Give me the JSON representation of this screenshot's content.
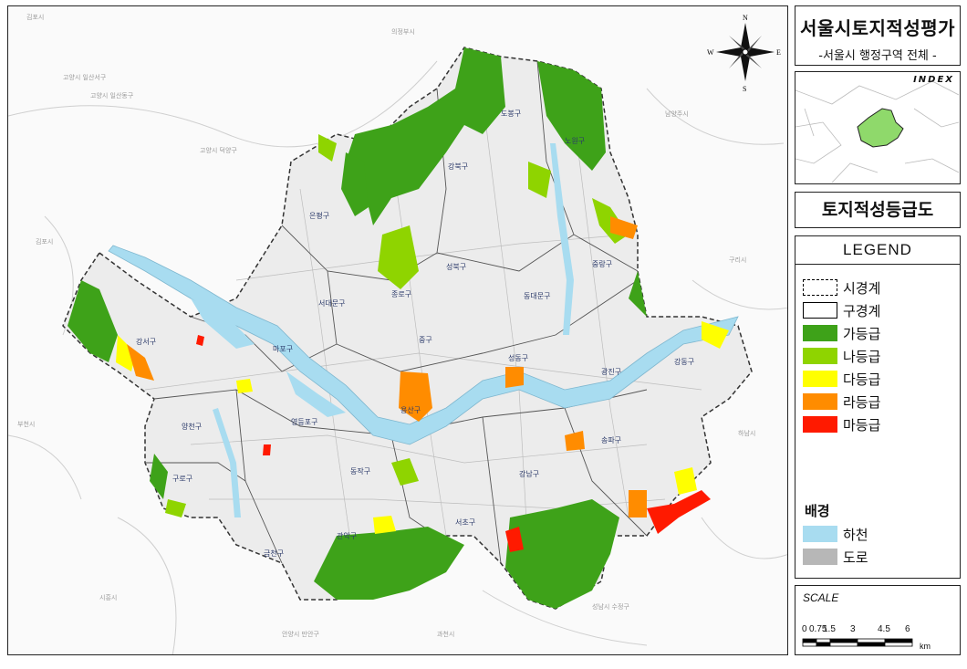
{
  "title": {
    "main": "서울시토지적성평가",
    "sub": "-서울시 행정구역 전체 -"
  },
  "index_map": {
    "label": "INDEX",
    "highlight_color": "#8fd96b"
  },
  "map_title": "토지적성등급도",
  "compass": {
    "n": "N",
    "s": "S",
    "e": "E",
    "w": "W"
  },
  "legend": {
    "header": "LEGEND",
    "items": [
      {
        "label": "시경계",
        "style": "dashed-outline",
        "color": "#000000"
      },
      {
        "label": "구경계",
        "style": "outline",
        "color": "#000000"
      },
      {
        "label": "가등급",
        "style": "fill",
        "color": "#3ea219"
      },
      {
        "label": "나등급",
        "style": "fill",
        "color": "#8fd400"
      },
      {
        "label": "다등급",
        "style": "fill",
        "color": "#ffff00"
      },
      {
        "label": "라등급",
        "style": "fill",
        "color": "#ff8c00"
      },
      {
        "label": "마등급",
        "style": "fill",
        "color": "#ff1a00"
      }
    ],
    "background_title": "배경",
    "background_items": [
      {
        "label": "하천",
        "color": "#a8dcf0"
      },
      {
        "label": "도로",
        "color": "#b7b7b7"
      }
    ]
  },
  "scale": {
    "label": "SCALE",
    "ticks": [
      "0",
      "0.75",
      "1.5",
      "3",
      "4.5",
      "6"
    ],
    "tick_values": [
      0,
      0.75,
      1.5,
      3,
      4.5,
      6
    ],
    "unit": "km"
  },
  "districts": [
    "강북구",
    "노원구",
    "도봉구",
    "은평구",
    "성북구",
    "중랑구",
    "서대문구",
    "종로구",
    "동대문구",
    "마포구",
    "중구",
    "성동구",
    "광진구",
    "강서구",
    "강동구",
    "용산구",
    "양천구",
    "영등포구",
    "송파구",
    "동작구",
    "강남구",
    "구로구",
    "서초구",
    "관악구",
    "금천구"
  ]
}
